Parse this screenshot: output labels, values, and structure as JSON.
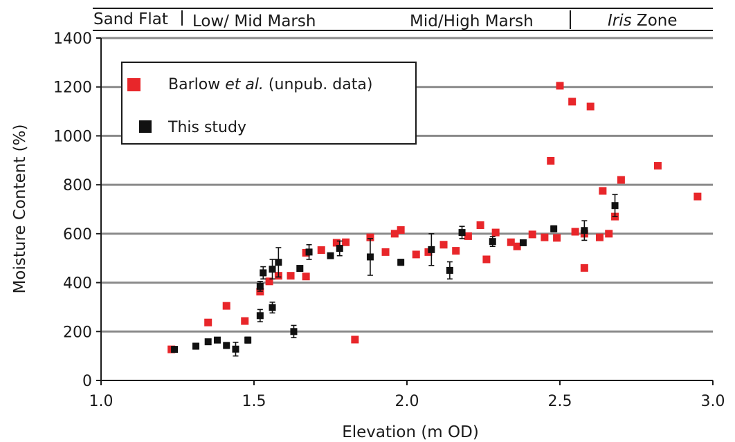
{
  "chart_data": {
    "type": "scatter",
    "xlabel": "Elevation (m OD)",
    "ylabel": "Moisture Content (%)",
    "xlim": [
      1.0,
      3.0
    ],
    "ylim": [
      0,
      1400
    ],
    "x_ticks": [
      "1.0",
      "1.5",
      "2.0",
      "2.5",
      "3.0"
    ],
    "y_ticks": [
      "0",
      "200",
      "400",
      "600",
      "800",
      "1000",
      "1200",
      "1400"
    ],
    "grid": "horizontal",
    "legend_position": "top-left",
    "zones": [
      {
        "label": "Sand Flat",
        "italic_part": ""
      },
      {
        "label": "Low/ Mid Marsh",
        "italic_part": ""
      },
      {
        "label": "Mid/High Marsh",
        "italic_part": ""
      },
      {
        "label": " Zone",
        "italic_part": "Iris"
      }
    ],
    "series": [
      {
        "name": "Barlow et al. (unpub. data)",
        "name_plain": "Barlow ",
        "name_italic": "et al.",
        "name_tail": " (unpub. data)",
        "color": "#e8262a",
        "points": [
          [
            1.23,
            127
          ],
          [
            1.35,
            237
          ],
          [
            1.41,
            305
          ],
          [
            1.47,
            243
          ],
          [
            1.52,
            363
          ],
          [
            1.55,
            405
          ],
          [
            1.58,
            428
          ],
          [
            1.62,
            428
          ],
          [
            1.67,
            425
          ],
          [
            1.67,
            522
          ],
          [
            1.72,
            533
          ],
          [
            1.77,
            563
          ],
          [
            1.8,
            565
          ],
          [
            1.83,
            167
          ],
          [
            1.88,
            585
          ],
          [
            1.93,
            525
          ],
          [
            1.96,
            600
          ],
          [
            1.98,
            615
          ],
          [
            2.03,
            515
          ],
          [
            2.07,
            525
          ],
          [
            2.12,
            555
          ],
          [
            2.16,
            530
          ],
          [
            2.2,
            590
          ],
          [
            2.24,
            635
          ],
          [
            2.26,
            495
          ],
          [
            2.29,
            605
          ],
          [
            2.34,
            565
          ],
          [
            2.36,
            548
          ],
          [
            2.41,
            597
          ],
          [
            2.45,
            585
          ],
          [
            2.47,
            898
          ],
          [
            2.49,
            583
          ],
          [
            2.5,
            1205
          ],
          [
            2.54,
            1140
          ],
          [
            2.55,
            608
          ],
          [
            2.58,
            460
          ],
          [
            2.58,
            600
          ],
          [
            2.6,
            1120
          ],
          [
            2.63,
            585
          ],
          [
            2.64,
            775
          ],
          [
            2.66,
            600
          ],
          [
            2.68,
            670
          ],
          [
            2.7,
            820
          ],
          [
            2.82,
            878
          ],
          [
            2.95,
            752
          ]
        ]
      },
      {
        "name": "This study",
        "color": "#111111",
        "points": [
          {
            "x": 1.24,
            "y": 127,
            "err": 8
          },
          {
            "x": 1.31,
            "y": 140,
            "err": 12
          },
          {
            "x": 1.35,
            "y": 158,
            "err": 10
          },
          {
            "x": 1.38,
            "y": 165,
            "err": 8
          },
          {
            "x": 1.41,
            "y": 143,
            "err": 12
          },
          {
            "x": 1.44,
            "y": 128,
            "err": 28
          },
          {
            "x": 1.48,
            "y": 165,
            "err": 12
          },
          {
            "x": 1.52,
            "y": 265,
            "err": 25
          },
          {
            "x": 1.52,
            "y": 385,
            "err": 20
          },
          {
            "x": 1.53,
            "y": 440,
            "err": 25
          },
          {
            "x": 1.56,
            "y": 455,
            "err": 40
          },
          {
            "x": 1.56,
            "y": 298,
            "err": 22
          },
          {
            "x": 1.58,
            "y": 483,
            "err": 60
          },
          {
            "x": 1.63,
            "y": 200,
            "err": 25
          },
          {
            "x": 1.65,
            "y": 458,
            "err": 10
          },
          {
            "x": 1.68,
            "y": 525,
            "err": 30
          },
          {
            "x": 1.75,
            "y": 510,
            "err": 10
          },
          {
            "x": 1.78,
            "y": 540,
            "err": 30
          },
          {
            "x": 1.88,
            "y": 505,
            "err": 75
          },
          {
            "x": 1.98,
            "y": 483,
            "err": 12
          },
          {
            "x": 2.08,
            "y": 535,
            "err": 65
          },
          {
            "x": 2.14,
            "y": 450,
            "err": 35
          },
          {
            "x": 2.18,
            "y": 605,
            "err": 25
          },
          {
            "x": 2.28,
            "y": 568,
            "err": 20
          },
          {
            "x": 2.38,
            "y": 563,
            "err": 10
          },
          {
            "x": 2.48,
            "y": 620,
            "err": 12
          },
          {
            "x": 2.58,
            "y": 613,
            "err": 40
          },
          {
            "x": 2.68,
            "y": 715,
            "err": 45
          }
        ]
      }
    ]
  }
}
